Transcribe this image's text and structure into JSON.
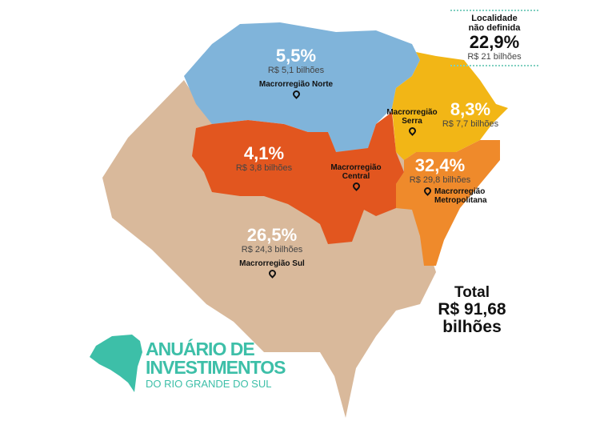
{
  "colors": {
    "norte": "#80b4da",
    "sul": "#d9b99b",
    "central": "#e2561f",
    "serra": "#f2b616",
    "metropolitana": "#ef8a2b",
    "brand": "#3dbfa8"
  },
  "regions": {
    "norte": {
      "percent": "5,5%",
      "value": "R$ 5,1 bilhões",
      "name": "Macrorregião Norte"
    },
    "serra": {
      "percent": "8,3%",
      "value": "R$ 7,7 bilhões",
      "name": "Macrorregião Serra"
    },
    "central": {
      "percent": "4,1%",
      "value": "R$ 3,8 bilhões",
      "name": "Macrorregião Central"
    },
    "metropolitana": {
      "percent": "32,4%",
      "value": "R$ 29,8 bilhões",
      "name": "Macrorregião Metropolitana"
    },
    "sul": {
      "percent": "26,5%",
      "value": "R$ 24,3 bilhões",
      "name": "Macrorregião Sul"
    }
  },
  "undefined_location": {
    "label": "Localidade não definida",
    "percent": "22,9%",
    "value": "R$ 21 bilhões"
  },
  "total": {
    "label": "Total",
    "value": "R$ 91,68",
    "unit": "bilhões"
  },
  "logo": {
    "line1": "ANUÁRIO DE",
    "line2": "INVESTIMENTOS",
    "line3": "DO RIO GRANDE DO SUL"
  }
}
